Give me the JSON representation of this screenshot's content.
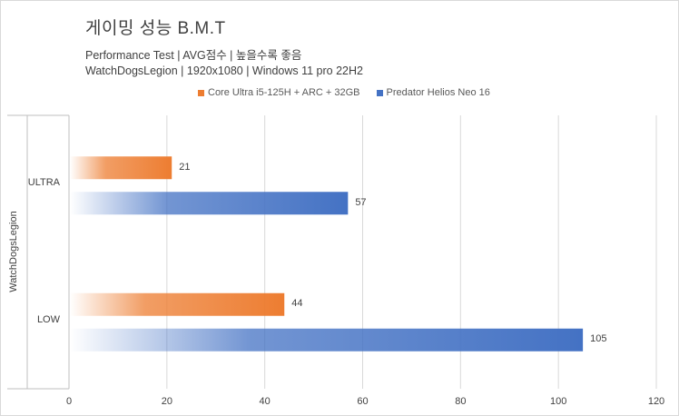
{
  "title": "게이밍 성능 B.M.T",
  "subtitle1": "Performance Test | AVG점수 | 높을수록 좋음",
  "subtitle2": "WatchDogsLegion | 1920x1080 | Windows 11 pro 22H2",
  "colors": {
    "series1": "#ed7d31",
    "series2": "#4472c4",
    "grid": "#d9d9d9",
    "axis": "#bfbfbf"
  },
  "chart_data": {
    "type": "bar",
    "orientation": "horizontal",
    "title": "게이밍 성능 B.M.T",
    "group_label": "WatchDogsLegion",
    "categories": [
      "ULTRA",
      "LOW"
    ],
    "series": [
      {
        "name": "Core Ultra i5-125H + ARC + 32GB",
        "values": [
          21,
          44
        ]
      },
      {
        "name": "Predator Helios Neo 16",
        "values": [
          57,
          105
        ]
      }
    ],
    "xlim": [
      0,
      120
    ],
    "xticks": [
      0,
      20,
      40,
      60,
      80,
      100,
      120
    ],
    "grid": true,
    "legend_position": "top"
  }
}
